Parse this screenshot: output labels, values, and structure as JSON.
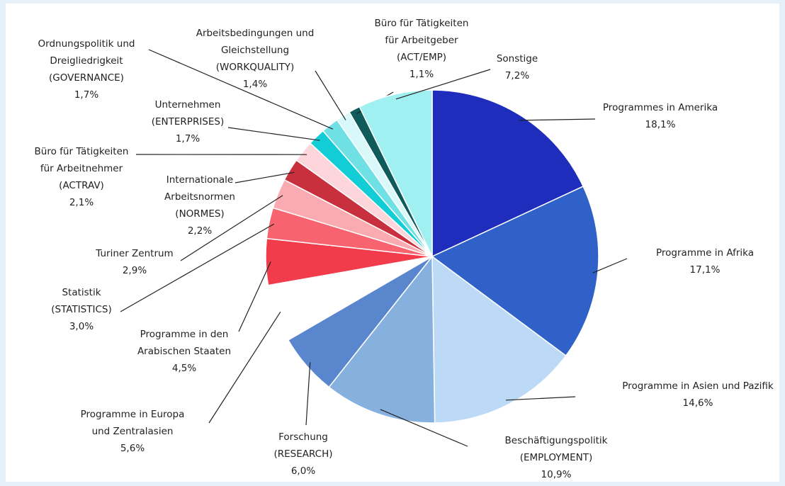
{
  "chart_data": {
    "type": "pie",
    "categories": [
      [
        "Programmes in Amerika"
      ],
      [
        "Programme in Afrika"
      ],
      [
        "Programme in Asien und Pazifik"
      ],
      [
        "Beschäftigungspolitik",
        "(EMPLOYMENT)"
      ],
      [
        "Forschung",
        "(RESEARCH)"
      ],
      [
        "Programme in Europa",
        "und Zentralasien"
      ],
      [
        "Programme in den",
        "Arabischen Staaten"
      ],
      [
        "Statistik",
        "(STATISTICS)"
      ],
      [
        "Turiner Zentrum"
      ],
      [
        "Internationale",
        "Arbeitsnormen",
        "(NORMES)"
      ],
      [
        "Büro für Tätigkeiten",
        "für Arbeitnehmer",
        "(ACTRAV)"
      ],
      [
        "Unternehmen",
        "(ENTERPRISES)"
      ],
      [
        "Ordnungspolitik und",
        "Dreigliedrigkeit",
        "(GOVERNANCE)"
      ],
      [
        "Arbeitsbedingungen und",
        "Gleichstellung",
        "(WORKQUALITY)"
      ],
      [
        "Büro für Tätigkeiten",
        "für Arbeitgeber",
        "(ACT/EMP)"
      ],
      [
        "Sonstige"
      ]
    ],
    "values": [
      18.1,
      17.1,
      14.6,
      10.9,
      6.0,
      5.6,
      4.5,
      3.0,
      2.9,
      2.2,
      2.1,
      1.7,
      1.7,
      1.4,
      1.1,
      7.2
    ],
    "value_labels": [
      "18,1%",
      "17,1%",
      "14,6%",
      "10,9%",
      "6,0%",
      "5,6%",
      "4,5%",
      "3,0%",
      "2,9%",
      "2,2%",
      "2,1%",
      "1,7%",
      "1,7%",
      "1,4%",
      "1,1%",
      "7,2%"
    ],
    "colors": [
      "#1f2dbd",
      "#2f61c9",
      "#bcd9f6",
      "#86b0de",
      "#5a86cd",
      "#ffffff",
      "#f23c4b",
      "#f7646f",
      "#f9abb1",
      "#c8303d",
      "#fdd6db",
      "#12cdd5",
      "#6fe0e4",
      "#d9f8fa",
      "#0f5a5a",
      "#a0f0f1"
    ]
  }
}
